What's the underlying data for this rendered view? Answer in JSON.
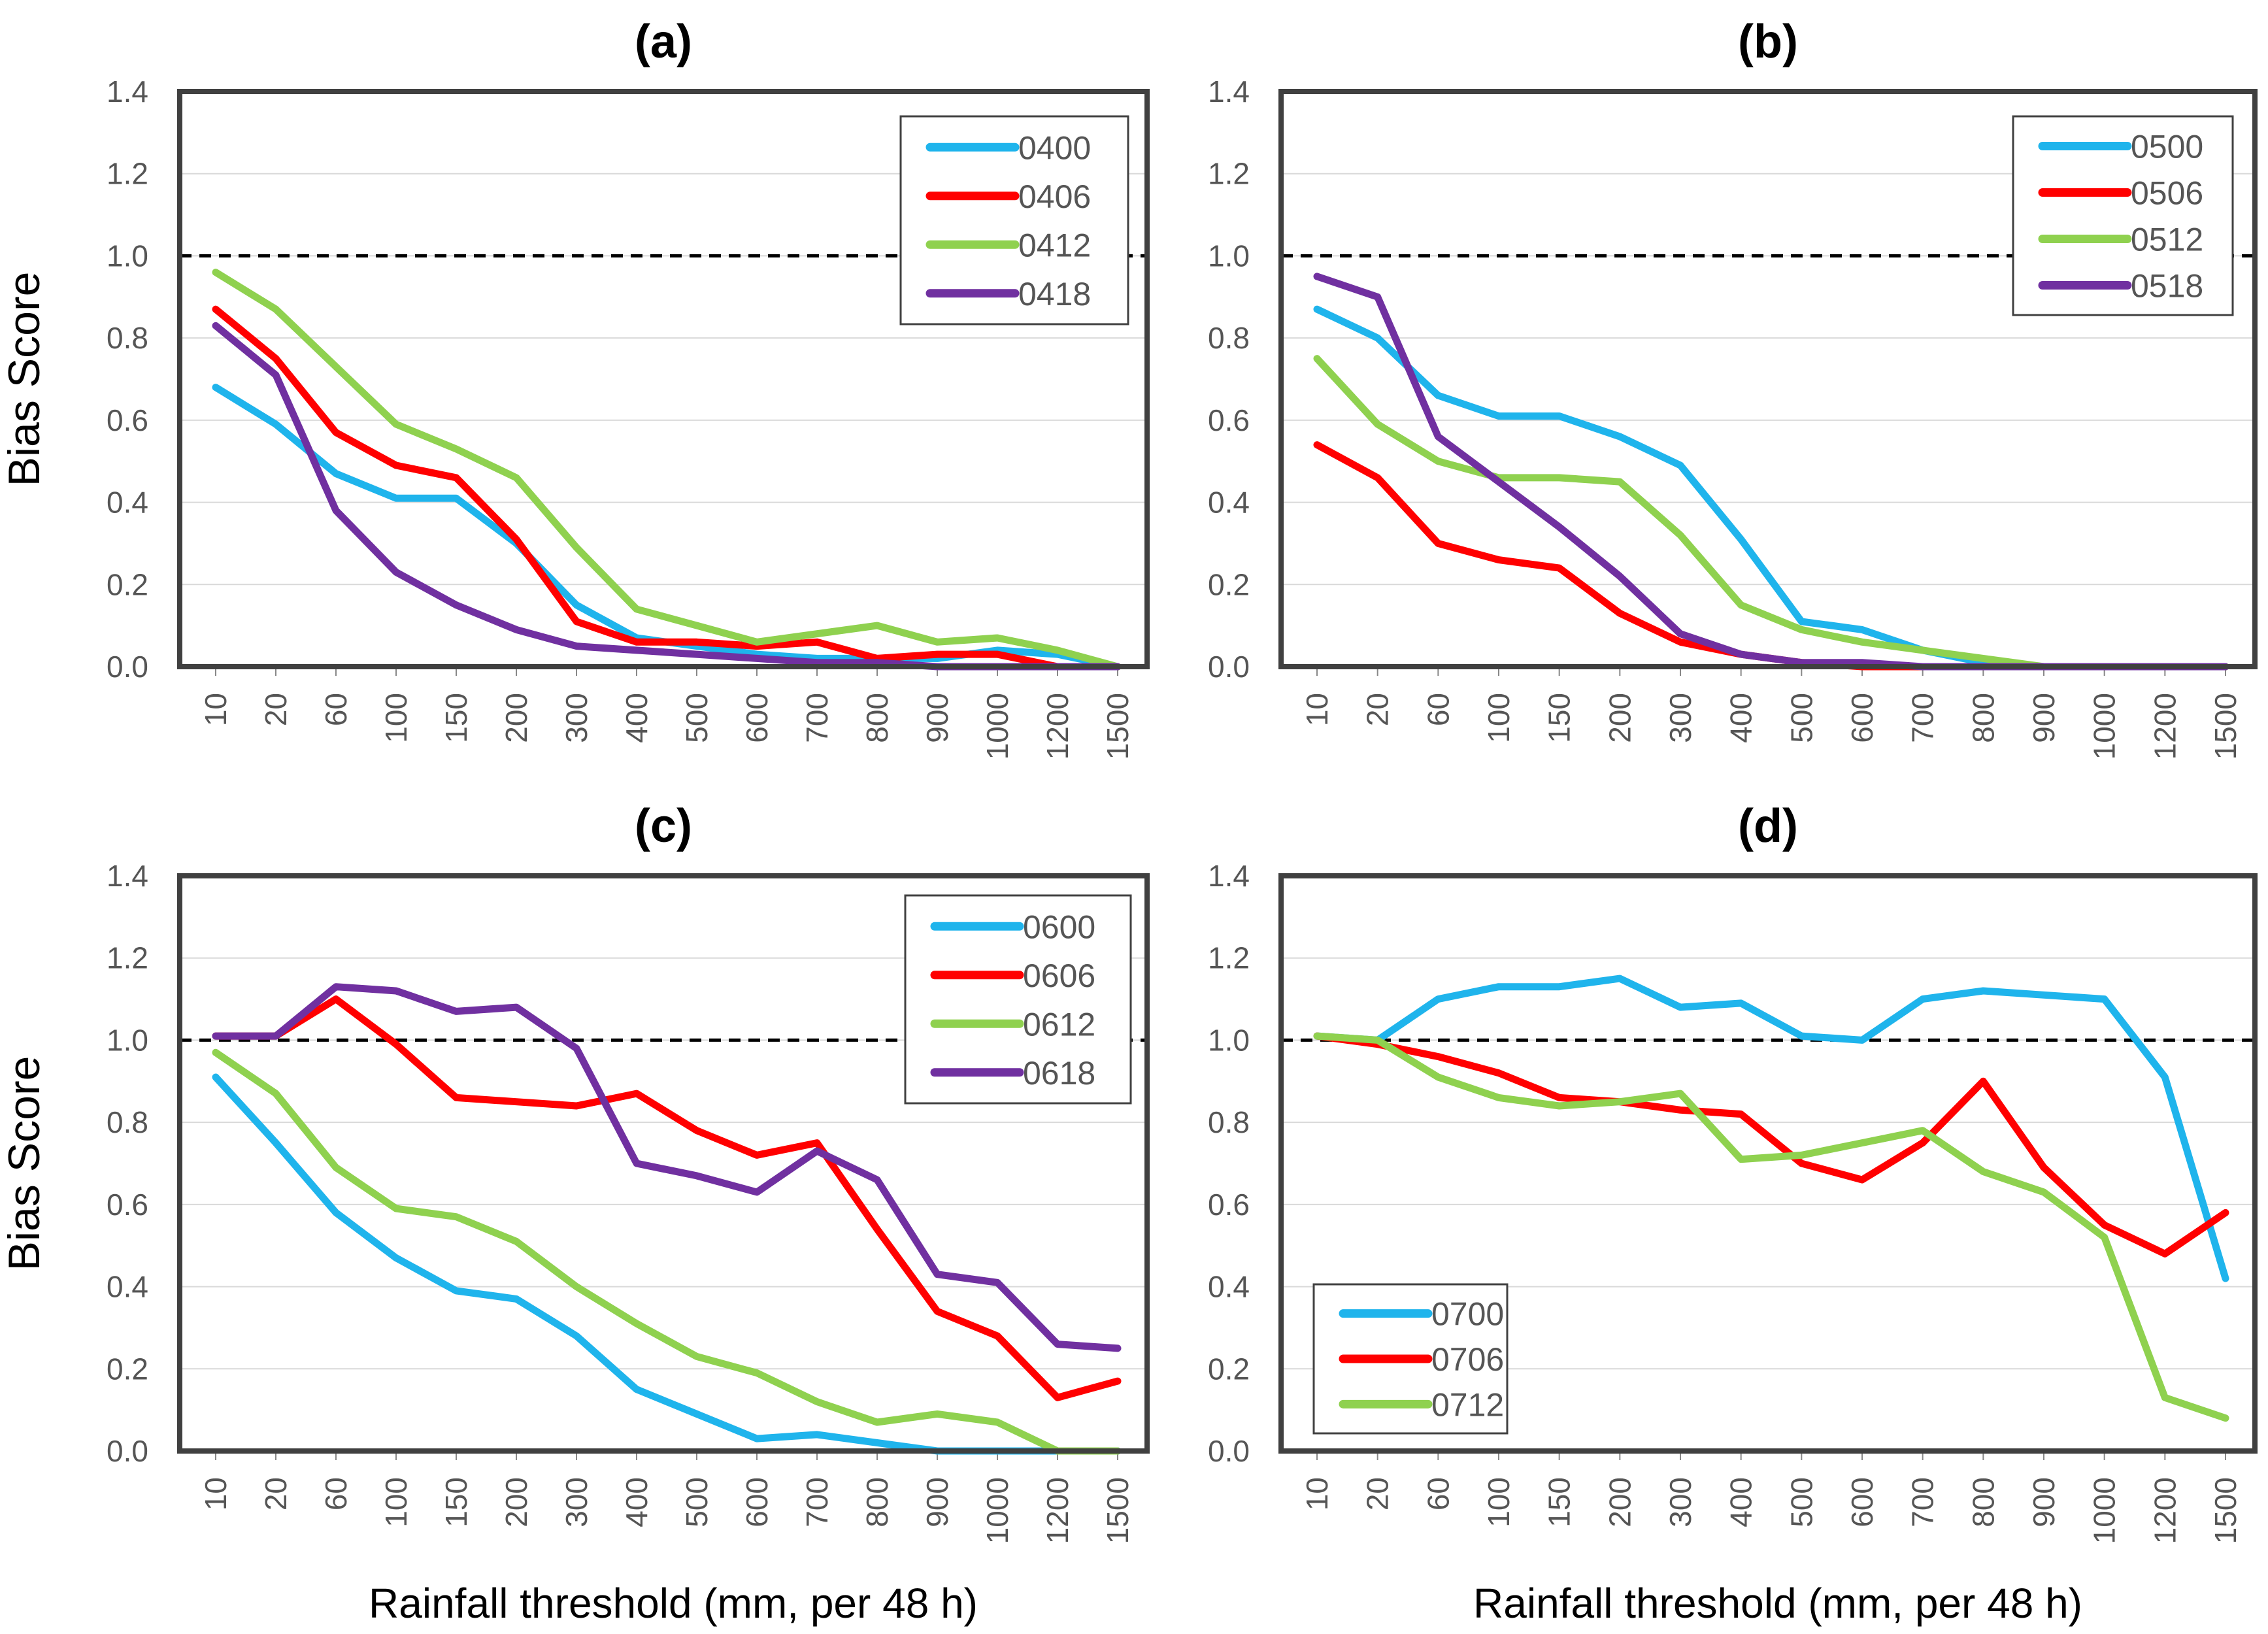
{
  "chart_data": [
    {
      "type": "line",
      "title": "(a)",
      "xlabel": "",
      "ylabel": "Bias Score",
      "categories": [
        "10",
        "20",
        "60",
        "100",
        "150",
        "200",
        "300",
        "400",
        "500",
        "600",
        "700",
        "800",
        "900",
        "1000",
        "1200",
        "1500"
      ],
      "ylim": [
        0,
        1.4
      ],
      "yticks": [
        "0.0",
        "0.2",
        "0.4",
        "0.6",
        "0.8",
        "1.0",
        "1.2",
        "1.4"
      ],
      "reference_line": 1.0,
      "legend_position": "top-right",
      "series": [
        {
          "name": "0400",
          "color": "#1fb4ec",
          "values": [
            0.68,
            0.59,
            0.47,
            0.41,
            0.41,
            0.3,
            0.15,
            0.07,
            0.05,
            0.03,
            0.02,
            0.02,
            0.02,
            0.04,
            0.03,
            0.0
          ]
        },
        {
          "name": "0406",
          "color": "#ff0000",
          "values": [
            0.87,
            0.75,
            0.57,
            0.49,
            0.46,
            0.31,
            0.11,
            0.06,
            0.06,
            0.05,
            0.06,
            0.02,
            0.03,
            0.03,
            0.0,
            0.0
          ]
        },
        {
          "name": "0412",
          "color": "#8fd14f",
          "values": [
            0.96,
            0.87,
            0.73,
            0.59,
            0.53,
            0.46,
            0.29,
            0.14,
            0.1,
            0.06,
            0.08,
            0.1,
            0.06,
            0.07,
            0.04,
            0.0
          ]
        },
        {
          "name": "0418",
          "color": "#7030a0",
          "values": [
            0.83,
            0.71,
            0.38,
            0.23,
            0.15,
            0.09,
            0.05,
            0.04,
            0.03,
            0.02,
            0.01,
            0.01,
            0.0,
            0.0,
            0.0,
            0.0
          ]
        }
      ]
    },
    {
      "type": "line",
      "title": "(b)",
      "xlabel": "",
      "ylabel": "",
      "categories": [
        "10",
        "20",
        "60",
        "100",
        "150",
        "200",
        "300",
        "400",
        "500",
        "600",
        "700",
        "800",
        "900",
        "1000",
        "1200",
        "1500"
      ],
      "ylim": [
        0,
        1.4
      ],
      "yticks": [
        "0.0",
        "0.2",
        "0.4",
        "0.6",
        "0.8",
        "1.0",
        "1.2",
        "1.4"
      ],
      "reference_line": 1.0,
      "legend_position": "top-right",
      "series": [
        {
          "name": "0500",
          "color": "#1fb4ec",
          "values": [
            0.87,
            0.8,
            0.66,
            0.61,
            0.61,
            0.56,
            0.49,
            0.31,
            0.11,
            0.09,
            0.04,
            0.01,
            0.0,
            0.0,
            0.0,
            0.0
          ]
        },
        {
          "name": "0506",
          "color": "#ff0000",
          "values": [
            0.54,
            0.46,
            0.3,
            0.26,
            0.24,
            0.13,
            0.06,
            0.03,
            0.01,
            0.0,
            0.0,
            0.0,
            0.0,
            0.0,
            0.0,
            0.0
          ]
        },
        {
          "name": "0512",
          "color": "#8fd14f",
          "values": [
            0.75,
            0.59,
            0.5,
            0.46,
            0.46,
            0.45,
            0.32,
            0.15,
            0.09,
            0.06,
            0.04,
            0.02,
            0.0,
            0.0,
            0.0,
            0.0
          ]
        },
        {
          "name": "0518",
          "color": "#7030a0",
          "values": [
            0.95,
            0.9,
            0.56,
            0.45,
            0.34,
            0.22,
            0.08,
            0.03,
            0.01,
            0.01,
            0.0,
            0.0,
            0.0,
            0.0,
            0.0,
            0.0
          ]
        }
      ]
    },
    {
      "type": "line",
      "title": "(c)",
      "xlabel": "Rainfall threshold (mm, per 48 h)",
      "ylabel": "Bias Score",
      "categories": [
        "10",
        "20",
        "60",
        "100",
        "150",
        "200",
        "300",
        "400",
        "500",
        "600",
        "700",
        "800",
        "900",
        "1000",
        "1200",
        "1500"
      ],
      "ylim": [
        0,
        1.4
      ],
      "yticks": [
        "0.0",
        "0.2",
        "0.4",
        "0.6",
        "0.8",
        "1.0",
        "1.2",
        "1.4"
      ],
      "reference_line": 1.0,
      "legend_position": "top-right",
      "series": [
        {
          "name": "0600",
          "color": "#1fb4ec",
          "values": [
            0.91,
            0.75,
            0.58,
            0.47,
            0.39,
            0.37,
            0.28,
            0.15,
            0.09,
            0.03,
            0.04,
            0.02,
            0.0,
            0.0,
            0.0,
            0.0
          ]
        },
        {
          "name": "0606",
          "color": "#ff0000",
          "values": [
            1.01,
            1.01,
            1.1,
            0.99,
            0.86,
            0.85,
            0.84,
            0.87,
            0.78,
            0.72,
            0.75,
            0.54,
            0.34,
            0.28,
            0.13,
            0.17
          ]
        },
        {
          "name": "0612",
          "color": "#8fd14f",
          "values": [
            0.97,
            0.87,
            0.69,
            0.59,
            0.57,
            0.51,
            0.4,
            0.31,
            0.23,
            0.19,
            0.12,
            0.07,
            0.09,
            0.07,
            0.0,
            0.0
          ]
        },
        {
          "name": "0618",
          "color": "#7030a0",
          "values": [
            1.01,
            1.01,
            1.13,
            1.12,
            1.07,
            1.08,
            0.98,
            0.7,
            0.67,
            0.63,
            0.73,
            0.66,
            0.43,
            0.41,
            0.26,
            0.25
          ]
        }
      ]
    },
    {
      "type": "line",
      "title": "(d)",
      "xlabel": "Rainfall threshold (mm, per 48 h)",
      "ylabel": "",
      "categories": [
        "10",
        "20",
        "60",
        "100",
        "150",
        "200",
        "300",
        "400",
        "500",
        "600",
        "700",
        "800",
        "900",
        "1000",
        "1200",
        "1500"
      ],
      "ylim": [
        0,
        1.4
      ],
      "yticks": [
        "0.0",
        "0.2",
        "0.4",
        "0.6",
        "0.8",
        "1.0",
        "1.2",
        "1.4"
      ],
      "reference_line": 1.0,
      "legend_position": "bottom-left",
      "series": [
        {
          "name": "0700",
          "color": "#1fb4ec",
          "values": [
            1.01,
            1.0,
            1.1,
            1.13,
            1.13,
            1.15,
            1.08,
            1.09,
            1.01,
            1.0,
            1.1,
            1.12,
            1.11,
            1.1,
            0.91,
            0.42
          ]
        },
        {
          "name": "0706",
          "color": "#ff0000",
          "values": [
            1.01,
            0.99,
            0.96,
            0.92,
            0.86,
            0.85,
            0.83,
            0.82,
            0.7,
            0.66,
            0.75,
            0.9,
            0.69,
            0.55,
            0.48,
            0.58
          ]
        },
        {
          "name": "0712",
          "color": "#8fd14f",
          "values": [
            1.01,
            1.0,
            0.91,
            0.86,
            0.84,
            0.85,
            0.87,
            0.71,
            0.72,
            0.75,
            0.78,
            0.68,
            0.63,
            0.52,
            0.13,
            0.08
          ]
        }
      ]
    }
  ]
}
